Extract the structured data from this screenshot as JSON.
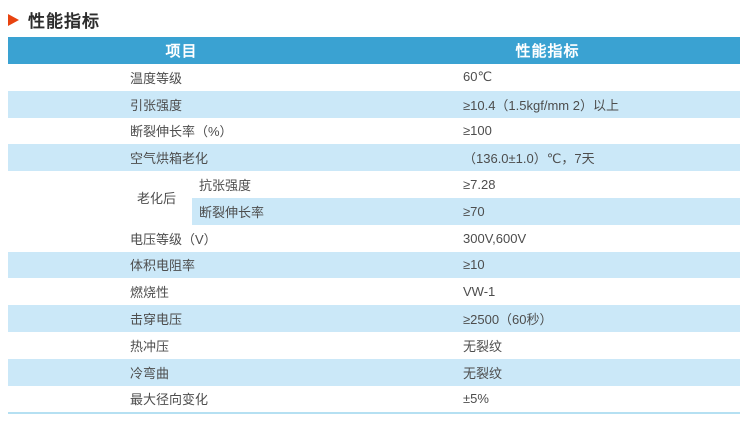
{
  "title": "性能指标",
  "colors": {
    "header_bg": "#3aa2d2",
    "row_alt_bg": "#cbe8f8",
    "bottom_line": "#b5e0f2",
    "label_text": "#4d4d4d",
    "header_text": "#ffffff",
    "title_text": "#2d2d2d",
    "arrow_color": "#e8430f",
    "page_bg": "#ffffff"
  },
  "table": {
    "header": {
      "col1": "项目",
      "col2": "性能指标"
    },
    "rows_top": [
      {
        "label": "温度等级",
        "value": "60℃"
      },
      {
        "label": "引张强度",
        "value": "≥10.4（1.5kgf/mm 2）以上"
      },
      {
        "label": "断裂伸长率（%）",
        "value": "≥100"
      },
      {
        "label": "空气烘箱老化",
        "value": "（136.0±1.0）℃，7天"
      }
    ],
    "merged": {
      "label": "老化后",
      "sub": [
        {
          "label": "抗张强度",
          "value": "≥7.28"
        },
        {
          "label": "断裂伸长率",
          "value": "≥70"
        }
      ]
    },
    "rows_bottom": [
      {
        "label": "电压等级（V）",
        "value": "300V,600V"
      },
      {
        "label": "体积电阻率",
        "value": "≥10"
      },
      {
        "label": "燃烧性",
        "value": "VW-1"
      },
      {
        "label": "击穿电压",
        "value": "≥2500（60秒）"
      },
      {
        "label": "热冲压",
        "value": "无裂纹"
      },
      {
        "label": "冷弯曲",
        "value": "无裂纹"
      },
      {
        "label": "最大径向变化",
        "value": "±5%"
      }
    ]
  }
}
